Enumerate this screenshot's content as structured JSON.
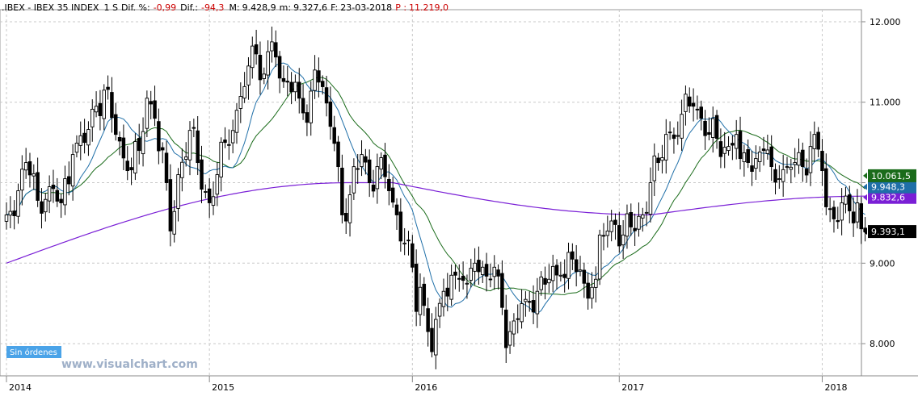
{
  "header": {
    "symbol": ".IBEX",
    "separator": " - ",
    "name": "IBEX 35 INDEX",
    "timeframe": "1 S",
    "dif_pct_label": "Dif. %:",
    "dif_pct_value": "-0,99",
    "dif_label": "Dif.:",
    "dif_value": "-94,3",
    "max_label": "M:",
    "max_value": "9.428,9",
    "min_value": "9.327,6",
    "date_label": "F:",
    "date_value": "23-03-2018",
    "prev_label": "P :",
    "prev_value": "11.219,0"
  },
  "badge": {
    "label": "Sin órdenes"
  },
  "watermark": {
    "text": "www.visualchart.com"
  },
  "colors": {
    "candle": "#000000",
    "ma_short": "#1f6fa8",
    "ma_mid": "#1a6b1a",
    "ma_long": "#7a1fd6",
    "label_green": "#1a6b1a",
    "label_blue": "#1f6fa8",
    "label_purple": "#7a1fd6",
    "header_negative": "#cc0000",
    "badge_bg": "#4aa3e8",
    "watermark": "#9fb0c8",
    "grid": "#c8c8c8"
  },
  "chart_data": {
    "type": "candlestick",
    "timeframe": "weekly",
    "ylim": [
      7600,
      12150
    ],
    "y_ticks": [
      {
        "value": 8000,
        "label": "8.000"
      },
      {
        "value": 9000,
        "label": "9.000"
      },
      {
        "value": 10000,
        "label": "10.000"
      },
      {
        "value": 11000,
        "label": "11.000"
      },
      {
        "value": 12000,
        "label": "12.000"
      }
    ],
    "x_labels": [
      {
        "week": 0,
        "label": "2014"
      },
      {
        "week": 52,
        "label": "2015"
      },
      {
        "week": 104,
        "label": "2016"
      },
      {
        "week": 157,
        "label": "2017"
      },
      {
        "week": 209,
        "label": "2018"
      }
    ],
    "week_range": [
      1,
      221
    ],
    "close_anchors": [
      [
        1,
        9600
      ],
      [
        4,
        9900
      ],
      [
        6,
        10250
      ],
      [
        9,
        9780
      ],
      [
        12,
        9950
      ],
      [
        15,
        9750
      ],
      [
        18,
        10350
      ],
      [
        21,
        10500
      ],
      [
        24,
        10950
      ],
      [
        26,
        11150
      ],
      [
        29,
        10600
      ],
      [
        32,
        10150
      ],
      [
        35,
        10400
      ],
      [
        37,
        11050
      ],
      [
        39,
        10800
      ],
      [
        42,
        10000
      ],
      [
        43,
        9400
      ],
      [
        45,
        10100
      ],
      [
        48,
        10650
      ],
      [
        50,
        10250
      ],
      [
        53,
        9750
      ],
      [
        55,
        10100
      ],
      [
        57,
        10500
      ],
      [
        60,
        10900
      ],
      [
        63,
        11450
      ],
      [
        65,
        11600
      ],
      [
        67,
        11350
      ],
      [
        69,
        11750
      ],
      [
        71,
        11300
      ],
      [
        73,
        11250
      ],
      [
        76,
        11050
      ],
      [
        78,
        10750
      ],
      [
        80,
        11400
      ],
      [
        81,
        11250
      ],
      [
        84,
        10700
      ],
      [
        86,
        10200
      ],
      [
        87,
        9600
      ],
      [
        89,
        9850
      ],
      [
        92,
        10350
      ],
      [
        94,
        10000
      ],
      [
        96,
        10200
      ],
      [
        99,
        9900
      ],
      [
        101,
        9600
      ],
      [
        103,
        9250
      ],
      [
        105,
        8950
      ],
      [
        106,
        8400
      ],
      [
        107,
        8700
      ],
      [
        109,
        8150
      ],
      [
        110,
        7900
      ],
      [
        112,
        8500
      ],
      [
        113,
        8650
      ],
      [
        115,
        8850
      ],
      [
        117,
        8800
      ],
      [
        119,
        8750
      ],
      [
        121,
        9000
      ],
      [
        123,
        8950
      ],
      [
        125,
        8800
      ],
      [
        126,
        8950
      ],
      [
        128,
        8450
      ],
      [
        129,
        7950
      ],
      [
        130,
        8150
      ],
      [
        132,
        8300
      ],
      [
        134,
        8550
      ],
      [
        137,
        8650
      ],
      [
        140,
        8800
      ],
      [
        143,
        8850
      ],
      [
        146,
        9050
      ],
      [
        149,
        8750
      ],
      [
        151,
        8700
      ],
      [
        152,
        8800
      ],
      [
        153,
        9350
      ],
      [
        155,
        9400
      ],
      [
        157,
        9480
      ],
      [
        159,
        9350
      ],
      [
        161,
        9450
      ],
      [
        164,
        9600
      ],
      [
        166,
        10000
      ],
      [
        168,
        10250
      ],
      [
        170,
        10600
      ],
      [
        172,
        10550
      ],
      [
        174,
        10850
      ],
      [
        175,
        11100
      ],
      [
        177,
        10950
      ],
      [
        179,
        10800
      ],
      [
        181,
        10600
      ],
      [
        183,
        10550
      ],
      [
        186,
        10450
      ],
      [
        188,
        10600
      ],
      [
        189,
        10300
      ],
      [
        191,
        10250
      ],
      [
        193,
        10300
      ],
      [
        195,
        10400
      ],
      [
        197,
        10200
      ],
      [
        199,
        10050
      ],
      [
        201,
        10200
      ],
      [
        203,
        10250
      ],
      [
        205,
        10200
      ],
      [
        207,
        10450
      ],
      [
        208,
        10600
      ],
      [
        210,
        10150
      ],
      [
        211,
        9700
      ],
      [
        213,
        9550
      ],
      [
        215,
        9750
      ],
      [
        217,
        9650
      ],
      [
        218,
        9500
      ],
      [
        219,
        9750
      ],
      [
        220,
        9427
      ],
      [
        221,
        9393
      ]
    ],
    "moving_averages": [
      {
        "period": 10,
        "last_value": 9948.3,
        "last_label": "9.948,3"
      },
      {
        "period": 20,
        "last_value": 10061.5,
        "last_label": "10.061,5"
      },
      {
        "period": 200,
        "last_value": 9832.6,
        "last_label": "9.832,6"
      }
    ],
    "last_price": {
      "value": 9393.1,
      "label": "9.393,1"
    }
  }
}
